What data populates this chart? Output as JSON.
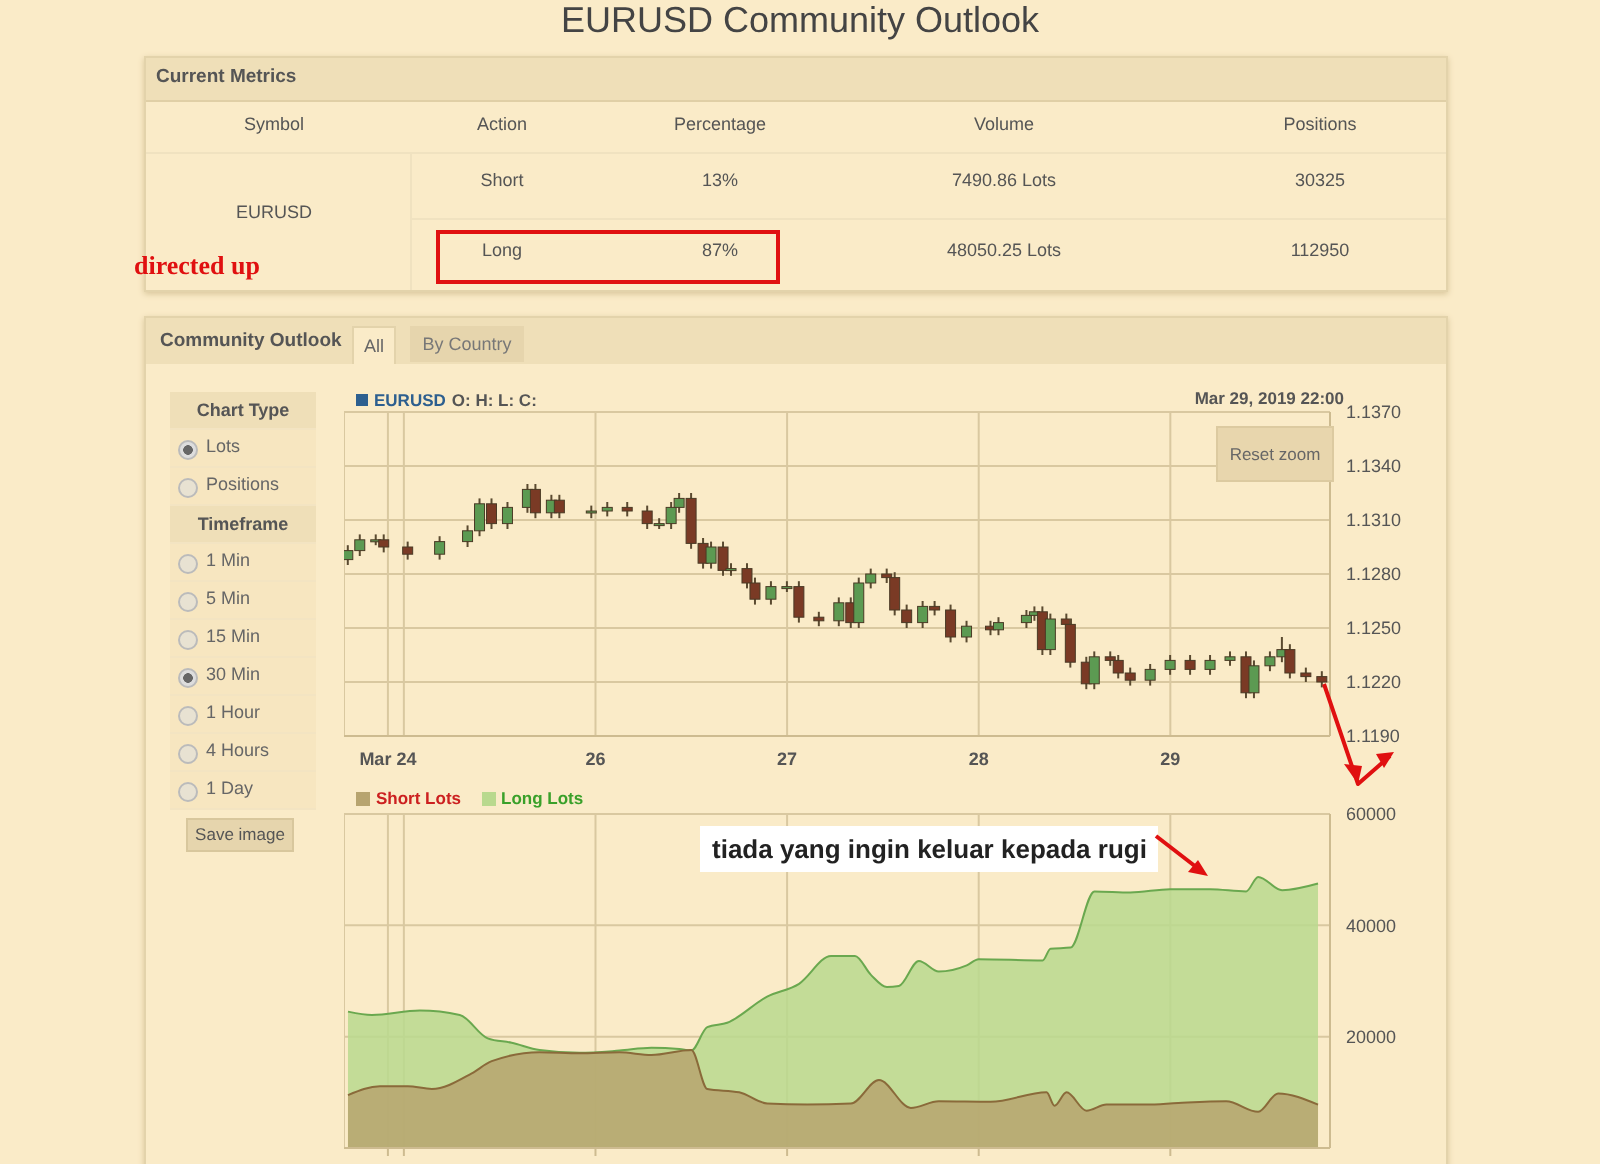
{
  "chart_data": [
    {
      "type": "other",
      "title": "EURUSD Community Outlook",
      "subtitle": "Current Metrics",
      "annotations": [
        "Symbol",
        "Action",
        "Percentage",
        "Volume",
        "Positions",
        "EURUSD",
        "Short",
        "13%",
        "7490.86 Lots",
        "30325",
        "Long",
        "87%",
        "48050.25 Lots",
        "112950",
        "directed up"
      ]
    },
    {
      "type": "other",
      "title": "Community Outlook",
      "annotations": [
        "All",
        "By Country",
        "Chart Type",
        "Lots",
        "Positions",
        "Timeframe",
        "1 Min",
        "5 Min",
        "15 Min",
        "30 Min",
        "1 Hour",
        "4 Hours",
        "1 Day",
        "Save image"
      ]
    },
    {
      "type": "candlestick",
      "title": "EURUSD",
      "annotations": [
        "O: H: L: C:",
        "Mar 29, 2019 22:00",
        "Reset zoom"
      ],
      "x": [
        "2019-03-24T17:00",
        "2019-03-24T18:30",
        "2019-03-24T20:30",
        "2019-03-24T21:30",
        "2019-03-25T00:30",
        "2019-03-25T04:30",
        "2019-03-25T08:00",
        "2019-03-25T09:30",
        "2019-03-25T11:00",
        "2019-03-25T13:00",
        "2019-03-25T15:30",
        "2019-03-25T16:30",
        "2019-03-25T18:30",
        "2019-03-25T19:30",
        "2019-03-25T23:30",
        "2019-03-26T01:30",
        "2019-03-26T04:00",
        "2019-03-26T06:30",
        "2019-03-26T08:00",
        "2019-03-26T09:30",
        "2019-03-26T10:30",
        "2019-03-26T12:00",
        "2019-03-26T13:30",
        "2019-03-26T14:30",
        "2019-03-26T16:00",
        "2019-03-26T17:00",
        "2019-03-26T19:00",
        "2019-03-26T20:00",
        "2019-03-26T22:00",
        "2019-03-27T00:00",
        "2019-03-27T01:30",
        "2019-03-27T04:00",
        "2019-03-27T06:30",
        "2019-03-27T08:00",
        "2019-03-27T09:00",
        "2019-03-27T10:30",
        "2019-03-27T12:30",
        "2019-03-27T13:30",
        "2019-03-27T15:00",
        "2019-03-27T17:00",
        "2019-03-27T18:30",
        "2019-03-27T20:30",
        "2019-03-27T22:30",
        "2019-03-28T01:30",
        "2019-03-28T02:30",
        "2019-03-28T06:00",
        "2019-03-28T07:00",
        "2019-03-28T08:00",
        "2019-03-28T09:00",
        "2019-03-28T11:00",
        "2019-03-28T11:30",
        "2019-03-28T13:30",
        "2019-03-28T14:30",
        "2019-03-28T16:30",
        "2019-03-28T17:30",
        "2019-03-28T19:00",
        "2019-03-28T21:30",
        "2019-03-29T00:00",
        "2019-03-29T02:30",
        "2019-03-29T05:00",
        "2019-03-29T07:30",
        "2019-03-29T09:30",
        "2019-03-29T10:30",
        "2019-03-29T12:30",
        "2019-03-29T14:00",
        "2019-03-29T15:00",
        "2019-03-29T17:00",
        "2019-03-29T19:00"
      ],
      "ohlc": [
        [
          1.1288,
          1.1296,
          1.1285,
          1.1293
        ],
        [
          1.1293,
          1.1302,
          1.129,
          1.1299
        ],
        [
          1.1299,
          1.1302,
          1.1296,
          1.1299
        ],
        [
          1.1299,
          1.1302,
          1.1292,
          1.1295
        ],
        [
          1.1295,
          1.1298,
          1.1288,
          1.1291
        ],
        [
          1.1291,
          1.1301,
          1.1288,
          1.1298
        ],
        [
          1.1298,
          1.1307,
          1.1295,
          1.1304
        ],
        [
          1.1304,
          1.1322,
          1.1301,
          1.1319
        ],
        [
          1.1319,
          1.1322,
          1.1305,
          1.1308
        ],
        [
          1.1308,
          1.132,
          1.1305,
          1.1317
        ],
        [
          1.1317,
          1.133,
          1.1314,
          1.1327
        ],
        [
          1.1327,
          1.133,
          1.1311,
          1.1314
        ],
        [
          1.1314,
          1.1324,
          1.1311,
          1.1321
        ],
        [
          1.1321,
          1.1324,
          1.1311,
          1.1314
        ],
        [
          1.1314,
          1.1318,
          1.1311,
          1.1315
        ],
        [
          1.1315,
          1.132,
          1.1312,
          1.1317
        ],
        [
          1.1317,
          1.132,
          1.1312,
          1.1315
        ],
        [
          1.1315,
          1.1318,
          1.1305,
          1.1308
        ],
        [
          1.1308,
          1.1311,
          1.1305,
          1.1308
        ],
        [
          1.1308,
          1.132,
          1.1305,
          1.1317
        ],
        [
          1.1317,
          1.1325,
          1.1314,
          1.1322
        ],
        [
          1.1322,
          1.1325,
          1.1294,
          1.1297
        ],
        [
          1.1297,
          1.13,
          1.1283,
          1.1286
        ],
        [
          1.1286,
          1.1298,
          1.1283,
          1.1295
        ],
        [
          1.1295,
          1.1298,
          1.1279,
          1.1282
        ],
        [
          1.1282,
          1.1286,
          1.1279,
          1.1283
        ],
        [
          1.1283,
          1.1286,
          1.1272,
          1.1275
        ],
        [
          1.1275,
          1.1278,
          1.1263,
          1.1266
        ],
        [
          1.1266,
          1.1276,
          1.1263,
          1.1273
        ],
        [
          1.1273,
          1.1276,
          1.127,
          1.1273
        ],
        [
          1.1273,
          1.1276,
          1.1253,
          1.1256
        ],
        [
          1.1256,
          1.1259,
          1.1251,
          1.1254
        ],
        [
          1.1254,
          1.1267,
          1.1251,
          1.1264
        ],
        [
          1.1264,
          1.1267,
          1.125,
          1.1253
        ],
        [
          1.1253,
          1.1278,
          1.125,
          1.1275
        ],
        [
          1.1275,
          1.1283,
          1.1272,
          1.128
        ],
        [
          1.128,
          1.1283,
          1.1275,
          1.1278
        ],
        [
          1.1278,
          1.1281,
          1.1257,
          1.126
        ],
        [
          1.126,
          1.1263,
          1.125,
          1.1253
        ],
        [
          1.1253,
          1.1265,
          1.125,
          1.1262
        ],
        [
          1.1262,
          1.1265,
          1.1257,
          1.126
        ],
        [
          1.126,
          1.1263,
          1.1242,
          1.1245
        ],
        [
          1.1245,
          1.1254,
          1.1242,
          1.1251
        ],
        [
          1.1251,
          1.1254,
          1.1246,
          1.1249
        ],
        [
          1.1249,
          1.1256,
          1.1246,
          1.1253
        ],
        [
          1.1253,
          1.126,
          1.125,
          1.1257
        ],
        [
          1.1257,
          1.1262,
          1.1254,
          1.1259
        ],
        [
          1.1259,
          1.1262,
          1.1235,
          1.1238
        ],
        [
          1.1238,
          1.1258,
          1.1235,
          1.1255
        ],
        [
          1.1255,
          1.1258,
          1.1249,
          1.1252
        ],
        [
          1.1252,
          1.1255,
          1.1228,
          1.1231
        ],
        [
          1.1231,
          1.1234,
          1.1216,
          1.1219
        ],
        [
          1.1219,
          1.1237,
          1.1216,
          1.1234
        ],
        [
          1.1234,
          1.1237,
          1.1229,
          1.1232
        ],
        [
          1.1232,
          1.1235,
          1.1222,
          1.1225
        ],
        [
          1.1225,
          1.1228,
          1.1218,
          1.1221
        ],
        [
          1.1221,
          1.123,
          1.1218,
          1.1227
        ],
        [
          1.1227,
          1.1235,
          1.1224,
          1.1232
        ],
        [
          1.1232,
          1.1235,
          1.1224,
          1.1227
        ],
        [
          1.1227,
          1.1235,
          1.1224,
          1.1232
        ],
        [
          1.1232,
          1.1237,
          1.1229,
          1.1234
        ],
        [
          1.1234,
          1.1237,
          1.1211,
          1.1214
        ],
        [
          1.1214,
          1.1232,
          1.1211,
          1.1229
        ],
        [
          1.1229,
          1.1237,
          1.1226,
          1.1234
        ],
        [
          1.1234,
          1.1245,
          1.1231,
          1.1238
        ],
        [
          1.1238,
          1.1241,
          1.1222,
          1.1225
        ],
        [
          1.1225,
          1.1228,
          1.122,
          1.1223
        ],
        [
          1.1223,
          1.1226,
          1.1217,
          1.122
        ]
      ],
      "xlim": [
        "2019-03-24T16:30",
        "2019-03-29T20:00"
      ],
      "xticks": [
        {
          "value": "2019-03-24T22:00",
          "label": "Mar 24"
        },
        {
          "value": "2019-03-25",
          "label": null
        },
        {
          "value": "2019-03-26",
          "label": "26"
        },
        {
          "value": "2019-03-27",
          "label": "27"
        },
        {
          "value": "2019-03-28",
          "label": "28"
        },
        {
          "value": "2019-03-29",
          "label": "29"
        }
      ],
      "ylim": [
        1.119,
        1.137
      ],
      "yticks": [
        {
          "value": 1.119,
          "label": "1.1190"
        },
        {
          "value": 1.122,
          "label": "1.1220"
        },
        {
          "value": 1.125,
          "label": "1.1250"
        },
        {
          "value": 1.128,
          "label": "1.1280"
        },
        {
          "value": 1.131,
          "label": "1.1310"
        },
        {
          "value": 1.134,
          "label": "1.1340"
        },
        {
          "value": 1.137,
          "label": "1.1370"
        }
      ],
      "grid": true
    },
    {
      "type": "area",
      "legend": "top left",
      "tick_labels": "y",
      "grid": true,
      "annotations": [
        "tiada yang ingin keluar kepada rugi"
      ],
      "xlim": [
        "2019-03-24T16:30",
        "2019-03-29T20:00"
      ],
      "xticks": [
        {
          "value": "2019-03-24T22:00",
          "label": null
        },
        {
          "value": "2019-03-25",
          "label": null
        },
        {
          "value": "2019-03-26",
          "label": null
        },
        {
          "value": "2019-03-27",
          "label": null
        },
        {
          "value": "2019-03-28",
          "label": null
        },
        {
          "value": "2019-03-29",
          "label": null
        }
      ],
      "ylim": [
        0,
        60000
      ],
      "yticks": [
        20000,
        40000,
        60000
      ],
      "series": [
        {
          "name": "Long Lots",
          "color": "#b9d98e",
          "x": [
            "2019-03-24T17:00",
            "2019-03-24T20:00",
            "2019-03-25T02:00",
            "2019-03-25T07:00",
            "2019-03-25T10:30",
            "2019-03-25T13:30",
            "2019-03-25T17:00",
            "2019-03-25T22:00",
            "2019-03-26T03:00",
            "2019-03-26T07:00",
            "2019-03-26T10:30",
            "2019-03-26T12:00",
            "2019-03-26T14:00",
            "2019-03-26T16:30",
            "2019-03-26T21:30",
            "2019-03-27T01:30",
            "2019-03-27T05:30",
            "2019-03-27T08:30",
            "2019-03-27T10:30",
            "2019-03-27T12:30",
            "2019-03-27T14:00",
            "2019-03-27T16:30",
            "2019-03-27T19:00",
            "2019-03-27T22:30",
            "2019-03-28T00:00",
            "2019-03-28T08:00",
            "2019-03-28T09:00",
            "2019-03-28T11:30",
            "2019-03-28T14:30",
            "2019-03-28T19:00",
            "2019-03-29T00:00",
            "2019-03-29T05:00",
            "2019-03-29T09:30",
            "2019-03-29T11:00",
            "2019-03-29T14:00",
            "2019-03-29T18:30"
          ],
          "values": [
            24500,
            23900,
            24700,
            23900,
            19700,
            18900,
            17600,
            17100,
            17500,
            18000,
            17800,
            17500,
            21700,
            22500,
            27200,
            29500,
            34500,
            34500,
            31100,
            28900,
            29100,
            33600,
            31700,
            32800,
            33900,
            33700,
            35800,
            36000,
            46100,
            45900,
            46500,
            46500,
            46100,
            48700,
            46300,
            47500
          ]
        },
        {
          "name": "Short Lots",
          "color": "#b7a46f",
          "x": [
            "2019-03-24T17:00",
            "2019-03-24T21:00",
            "2019-03-25T00:30",
            "2019-03-25T03:30",
            "2019-03-25T08:30",
            "2019-03-25T11:00",
            "2019-03-25T17:00",
            "2019-03-25T22:00",
            "2019-03-26T03:00",
            "2019-03-26T07:00",
            "2019-03-26T12:00",
            "2019-03-26T14:00",
            "2019-03-26T18:00",
            "2019-03-26T21:30",
            "2019-03-27T02:30",
            "2019-03-27T08:00",
            "2019-03-27T11:30",
            "2019-03-27T15:30",
            "2019-03-27T19:00",
            "2019-03-28T01:30",
            "2019-03-28T08:30",
            "2019-03-28T09:30",
            "2019-03-28T11:00",
            "2019-03-28T13:30",
            "2019-03-28T16:00",
            "2019-03-28T21:00",
            "2019-03-29T01:00",
            "2019-03-29T07:00",
            "2019-03-29T11:00",
            "2019-03-29T13:30",
            "2019-03-29T18:30"
          ],
          "values": [
            9500,
            11100,
            11100,
            10600,
            13400,
            15600,
            17200,
            17000,
            17200,
            16700,
            17600,
            10600,
            10000,
            8000,
            7800,
            8000,
            12200,
            7200,
            8400,
            8300,
            10000,
            7600,
            10000,
            6700,
            7800,
            7800,
            8100,
            8400,
            6500,
            9800,
            7800
          ]
        }
      ]
    }
  ]
}
